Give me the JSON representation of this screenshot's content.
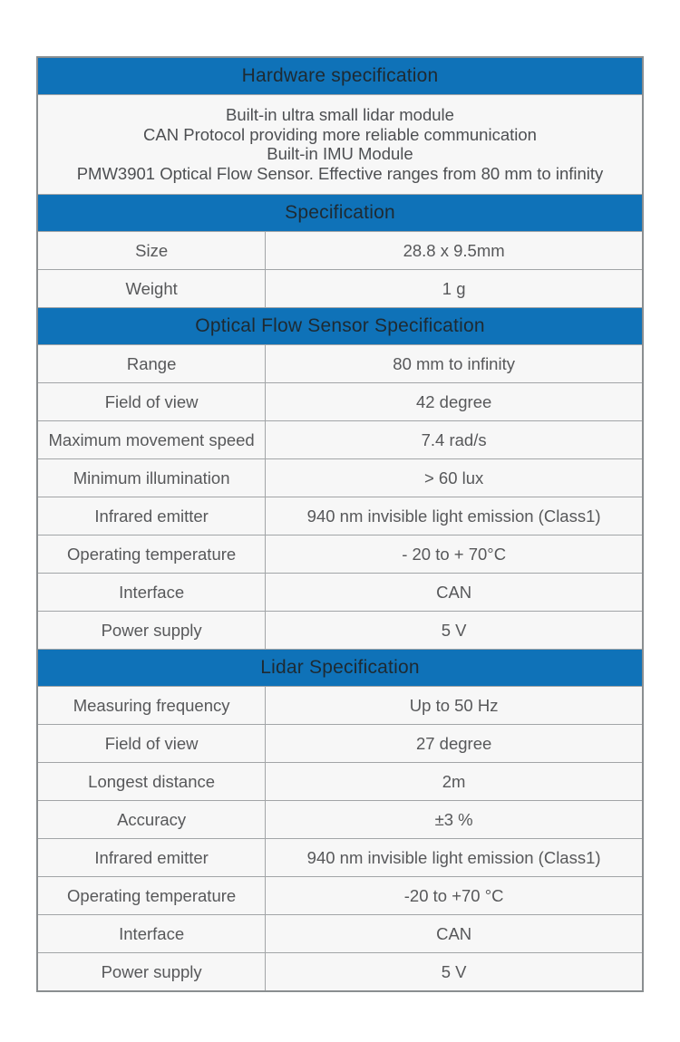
{
  "colors": {
    "section_header_bg": "#0f72b8",
    "section_header_text": "#1e2a32",
    "row_bg": "#f7f7f7",
    "row_text": "#57585a",
    "description_text": "#4d4f52",
    "outer_border": "#8a8e90",
    "grid_line": "#a2a5a7",
    "page_bg": "#ffffff"
  },
  "table": {
    "sections": [
      {
        "id": "hardware",
        "title": "Hardware specification",
        "description_lines": [
          "Built-in ultra small lidar module",
          "CAN Protocol providing more reliable communication",
          "Built-in IMU Module",
          "PMW3901 Optical Flow Sensor. Effective ranges from 80 mm to infinity"
        ]
      },
      {
        "id": "general",
        "title": "Specification",
        "rows": [
          {
            "label": "Size",
            "value": "28.8 x 9.5mm"
          },
          {
            "label": "Weight",
            "value": "1 g"
          }
        ]
      },
      {
        "id": "optical_flow",
        "title": "Optical Flow Sensor Specification",
        "rows": [
          {
            "label": "Range",
            "value": "80 mm to infinity"
          },
          {
            "label": "Field of view",
            "value": "42 degree"
          },
          {
            "label": "Maximum movement speed",
            "value": "7.4 rad/s"
          },
          {
            "label": "Minimum illumination",
            "value": "> 60 lux"
          },
          {
            "label": "Infrared emitter",
            "value": "940 nm invisible light emission (Class1)"
          },
          {
            "label": "Operating temperature",
            "value": "- 20 to + 70°C"
          },
          {
            "label": "Interface",
            "value": "CAN"
          },
          {
            "label": "Power supply",
            "value": "5 V"
          }
        ]
      },
      {
        "id": "lidar",
        "title": "Lidar Specification",
        "rows": [
          {
            "label": "Measuring frequency",
            "value": "Up to 50 Hz"
          },
          {
            "label": "Field of view",
            "value": "27 degree"
          },
          {
            "label": "Longest distance",
            "value": "2m"
          },
          {
            "label": "Accuracy",
            "value": "±3 %"
          },
          {
            "label": "Infrared emitter",
            "value": "940 nm invisible light emission (Class1)"
          },
          {
            "label": "Operating temperature",
            "value": "-20 to +70 °C"
          },
          {
            "label": "Interface",
            "value": "CAN"
          },
          {
            "label": "Power supply",
            "value": "5 V"
          }
        ]
      }
    ]
  }
}
